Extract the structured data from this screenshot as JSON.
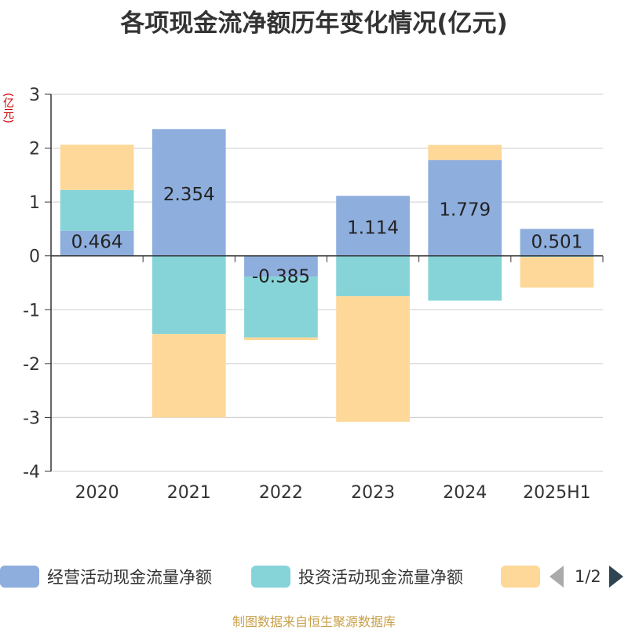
{
  "title": "各项现金流净额历年变化情况(亿元)",
  "y_unit": "(亿元)",
  "source": "制图数据来自恒生聚源数据库",
  "legend": {
    "items": [
      {
        "label": "经营活动现金流量净额",
        "color": "#8eaedd"
      },
      {
        "label": "投资活动现金流量净额",
        "color": "#86d4d8"
      },
      {
        "label": "",
        "color": "#fdd898"
      }
    ],
    "page": "1/2"
  },
  "chart_data": {
    "type": "bar",
    "stacked": true,
    "categories": [
      "2020",
      "2021",
      "2022",
      "2023",
      "2024",
      "2025H1"
    ],
    "series": [
      {
        "name": "经营活动现金流量净额",
        "color": "#8eaedd",
        "values": [
          0.464,
          2.354,
          -0.385,
          1.114,
          1.779,
          0.501
        ],
        "labels": [
          "0.464",
          "2.354",
          "-0.385",
          "1.114",
          "1.779",
          "0.501"
        ]
      },
      {
        "name": "投资活动现金流量净额",
        "color": "#86d4d8",
        "values": [
          0.76,
          -1.45,
          -1.13,
          -0.75,
          -0.83,
          -0.02
        ]
      },
      {
        "color": "#fdd898",
        "values": [
          0.84,
          -1.55,
          -0.05,
          -2.33,
          0.28,
          -0.57
        ]
      }
    ],
    "ylim": [
      -4,
      3
    ],
    "yticks": [
      "-4",
      "-3",
      "-2",
      "-1",
      "0",
      "1",
      "2",
      "3"
    ],
    "grid": true,
    "legend_position": "bottom"
  }
}
